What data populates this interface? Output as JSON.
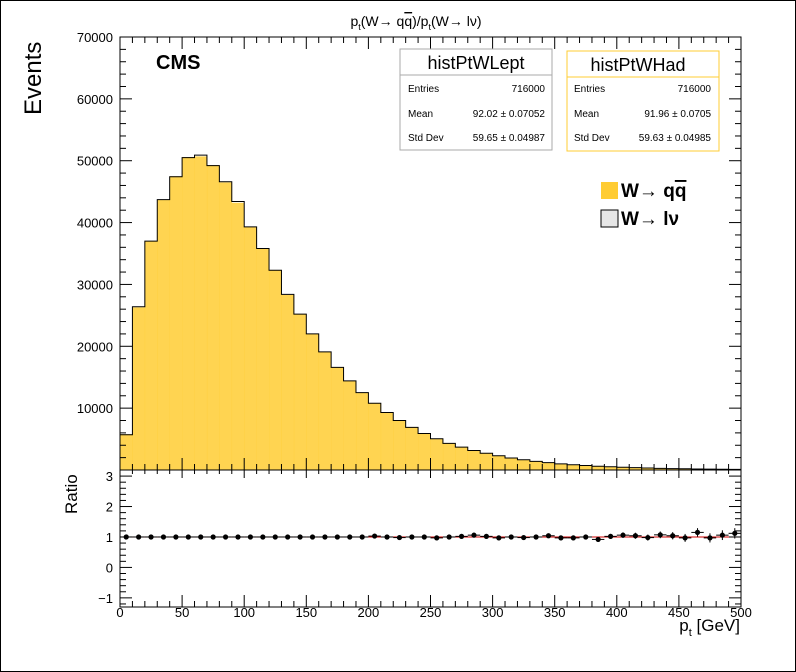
{
  "title": {
    "pre": "p",
    "sub": "t",
    "mid": "(W→ q",
    "qbar": "q",
    "mid2": ")/p",
    "sub2": "t",
    "post": "(W→ lν)"
  },
  "cms_label": "CMS",
  "top_ylabel": "Events",
  "ratio_ylabel": "Ratio",
  "xlabel": {
    "pre": "p",
    "sub": "t",
    "post": " [GeV]"
  },
  "statboxes": [
    {
      "name": "histPtWLept",
      "rows": [
        {
          "label": "Entries",
          "value": "716000"
        },
        {
          "label": "Mean",
          "value": "92.02 ± 0.07052"
        },
        {
          "label": "Std Dev",
          "value": "59.65 ± 0.04987"
        }
      ],
      "border_color": "#aaaaaa"
    },
    {
      "name": "histPtWHad",
      "rows": [
        {
          "label": "Entries",
          "value": "716000"
        },
        {
          "label": "Mean",
          "value": "91.96 ± 0.0705"
        },
        {
          "label": "Std Dev",
          "value": "59.63 ± 0.04985"
        }
      ],
      "border_color": "#ffcc33"
    }
  ],
  "legend": [
    {
      "pre": "W→ q",
      "qbar": "q",
      "post": "",
      "color": "#ffcc33"
    },
    {
      "pre": "W→ lν",
      "qbar": "",
      "post": "",
      "color": "#e6e6e6"
    }
  ],
  "chart_data": {
    "type": "bar",
    "title": "p_t(W→ qq̄)/p_t(W→ lν)",
    "xlabel": "p_t [GeV]",
    "ylabel": "Events",
    "xlim": [
      0,
      500
    ],
    "ylim": [
      0,
      70000
    ],
    "bin_width": 10,
    "x_ticks": [
      0,
      50,
      100,
      150,
      200,
      250,
      300,
      350,
      400,
      450,
      500
    ],
    "y_ticks": [
      10000,
      20000,
      30000,
      40000,
      50000,
      60000,
      70000
    ],
    "bin_edges_start": 0,
    "series": [
      {
        "name": "W→ qq̄",
        "color": "#ffcc33",
        "style": "filled",
        "values": [
          5800,
          26300,
          37000,
          43700,
          47500,
          50600,
          50700,
          49300,
          46500,
          43200,
          39300,
          35800,
          32300,
          28300,
          25200,
          22000,
          19100,
          16600,
          14400,
          12500,
          10800,
          9300,
          8000,
          6900,
          5900,
          5050,
          4300,
          3700,
          3150,
          2700,
          2300,
          1950,
          1650,
          1400,
          1200,
          1000,
          850,
          720,
          610,
          520,
          440,
          380,
          320,
          270,
          230,
          200,
          170,
          150,
          130,
          110
        ]
      },
      {
        "name": "W→ lν",
        "color": "#e6e6e6",
        "style": "outline",
        "values": [
          5700,
          26400,
          37000,
          43700,
          47400,
          50500,
          50900,
          49200,
          46600,
          43400,
          39300,
          35800,
          32300,
          28400,
          25200,
          22000,
          19100,
          16600,
          14400,
          12500,
          10800,
          9300,
          8000,
          6900,
          5900,
          5050,
          4300,
          3700,
          3150,
          2700,
          2300,
          1950,
          1650,
          1400,
          1200,
          1000,
          850,
          720,
          610,
          520,
          440,
          380,
          320,
          270,
          230,
          200,
          170,
          150,
          130,
          110
        ]
      }
    ],
    "ratio_panel": {
      "ylabel": "Ratio",
      "ylim": [
        -1.3,
        3.2
      ],
      "y_ticks": [
        -1,
        0,
        1,
        2,
        3
      ],
      "reference_line": 1,
      "reference_color": "#cc0000",
      "ratios": [
        1.0,
        1.0,
        1.0,
        1.0,
        1.0,
        1.0,
        1.0,
        1.0,
        1.0,
        1.0,
        1.0,
        1.0,
        1.0,
        1.0,
        1.0,
        1.0,
        1.0,
        1.0,
        1.0,
        1.0,
        1.03,
        1.0,
        0.98,
        1.0,
        1.0,
        0.97,
        1.0,
        1.02,
        1.06,
        1.02,
        0.97,
        1.0,
        0.98,
        1.0,
        1.04,
        0.97,
        0.97,
        1.0,
        0.92,
        1.02,
        1.06,
        1.04,
        0.98,
        1.07,
        1.04,
        0.97,
        1.15,
        0.97,
        1.06,
        1.12
      ],
      "errors": [
        0.006,
        0.006,
        0.006,
        0.006,
        0.006,
        0.006,
        0.006,
        0.006,
        0.006,
        0.006,
        0.006,
        0.006,
        0.006,
        0.006,
        0.006,
        0.006,
        0.006,
        0.006,
        0.006,
        0.006,
        0.02,
        0.02,
        0.02,
        0.02,
        0.02,
        0.03,
        0.03,
        0.03,
        0.03,
        0.04,
        0.04,
        0.04,
        0.05,
        0.05,
        0.06,
        0.06,
        0.07,
        0.07,
        0.08,
        0.08,
        0.09,
        0.1,
        0.1,
        0.11,
        0.12,
        0.13,
        0.14,
        0.15,
        0.16,
        0.17
      ]
    }
  }
}
